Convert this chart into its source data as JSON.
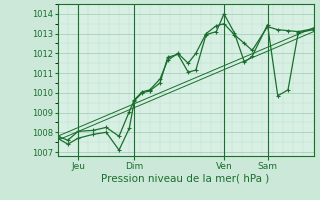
{
  "background_color": "#cce8d8",
  "plot_bg_color": "#d8f0e4",
  "grid_color_major": "#9ec8b0",
  "grid_color_minor": "#b8ddc8",
  "line_color": "#1a6e2e",
  "xlabel": "Pression niveau de la mer( hPa )",
  "ylim": [
    1006.8,
    1014.5
  ],
  "yticks": [
    1007,
    1008,
    1009,
    1010,
    1011,
    1012,
    1013,
    1014
  ],
  "xlim": [
    0,
    100
  ],
  "xtick_positions": [
    8,
    30,
    65,
    82
  ],
  "xtick_labels": [
    "Jeu",
    "Dim",
    "Ven",
    "Sam"
  ],
  "vline_positions": [
    8,
    30,
    65,
    82
  ],
  "trend1_x": [
    0,
    100
  ],
  "trend1_y": [
    1007.6,
    1013.1
  ],
  "trend2_x": [
    0,
    100
  ],
  "trend2_y": [
    1007.8,
    1013.3
  ],
  "jagged1_x": [
    0,
    4,
    8,
    14,
    19,
    24,
    28,
    30,
    33,
    36,
    40,
    43,
    47,
    51,
    54,
    58,
    62,
    65,
    69,
    73,
    76,
    82,
    86,
    90,
    94,
    100
  ],
  "jagged1_y": [
    1007.7,
    1007.4,
    1007.7,
    1007.9,
    1008.0,
    1007.1,
    1008.2,
    1009.6,
    1010.0,
    1010.1,
    1010.5,
    1011.8,
    1011.95,
    1011.05,
    1011.15,
    1012.95,
    1013.1,
    1014.0,
    1013.05,
    1011.55,
    1011.85,
    1013.45,
    1009.85,
    1010.15,
    1013.05,
    1013.2
  ],
  "jagged2_x": [
    0,
    4,
    8,
    14,
    19,
    24,
    28,
    30,
    33,
    36,
    40,
    43,
    47,
    51,
    54,
    58,
    62,
    65,
    69,
    73,
    76,
    82,
    86,
    90,
    94,
    100
  ],
  "jagged2_y": [
    1007.8,
    1007.6,
    1008.05,
    1008.1,
    1008.25,
    1007.8,
    1009.05,
    1009.65,
    1010.05,
    1010.15,
    1010.7,
    1011.65,
    1012.0,
    1011.5,
    1012.0,
    1013.0,
    1013.4,
    1013.5,
    1012.95,
    1012.5,
    1012.15,
    1013.35,
    1013.2,
    1013.15,
    1013.1,
    1013.25
  ],
  "marker_size": 2.5,
  "line_width": 0.9,
  "trend_lw": 0.7
}
